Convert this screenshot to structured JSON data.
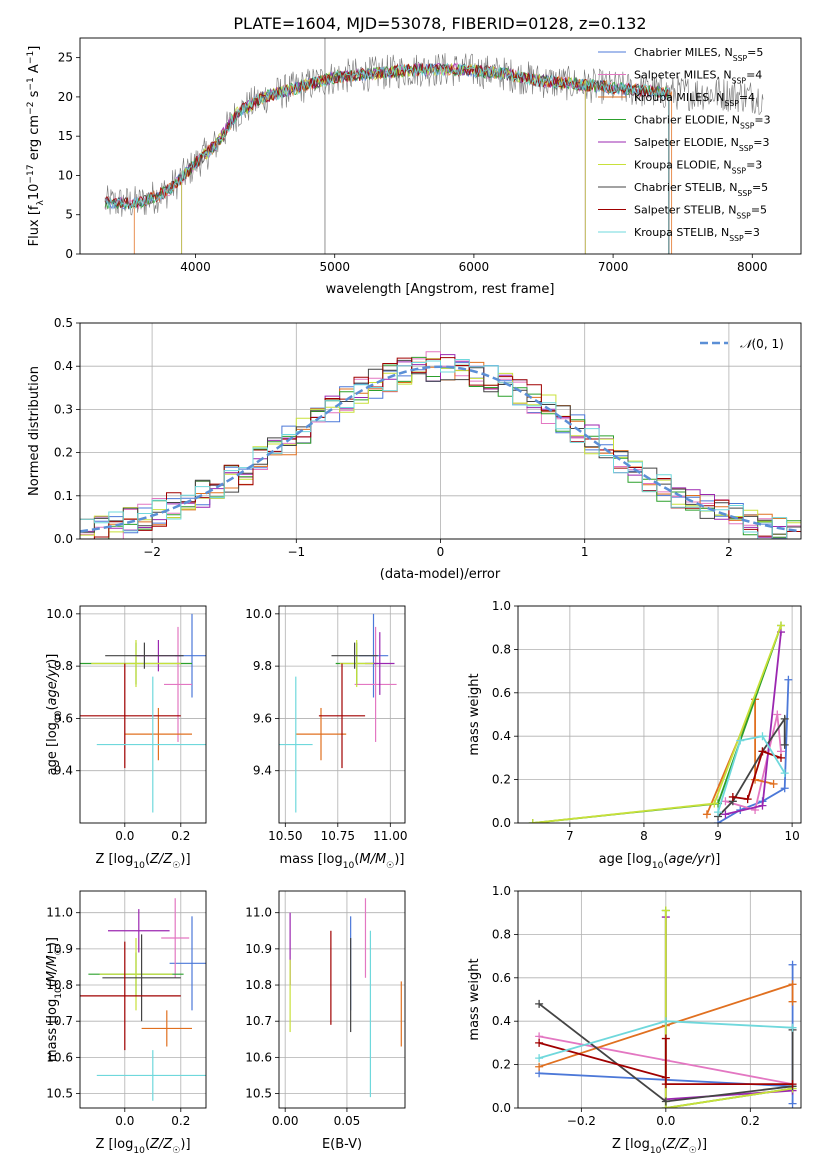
{
  "title": "PLATE=1604, MJD=53078, FIBERID=0128, z=0.132",
  "colors": {
    "chabrier_miles": "#4c78d8",
    "salpeter_miles": "#e377c2",
    "kroupa_miles": "#e07020",
    "chabrier_elodie": "#2ca02c",
    "salpeter_elodie": "#9b27b0",
    "kroupa_elodie": "#c8e03a",
    "chabrier_stelib": "#444444",
    "salpeter_stelib": "#a00000",
    "kroupa_stelib": "#6fd8dc",
    "gaussian": "#5b8fd6",
    "grid": "#b0b0b0"
  },
  "chart_data": [
    {
      "id": "spectrum",
      "type": "line",
      "xlabel": "wavelength [Angstrom, rest frame]",
      "ylabel": "Flux [f_λ10^-17 erg cm^-2 s^-1 A^-1]",
      "xlim": [
        3170,
        8350
      ],
      "ylim": [
        0,
        27.5
      ],
      "xticks": [
        4000,
        5000,
        6000,
        7000,
        8000
      ],
      "yticks": [
        0,
        5,
        10,
        15,
        20,
        25
      ],
      "grid": false,
      "legend_position": "right",
      "series": [
        {
          "name": "Chabrier MILES, N_SSP=5",
          "color_key": "chabrier_miles"
        },
        {
          "name": "Salpeter MILES, N_SSP=4",
          "color_key": "salpeter_miles"
        },
        {
          "name": "Kroupa MILES, N_SSP=4",
          "color_key": "kroupa_miles"
        },
        {
          "name": "Chabrier ELODIE, N_SSP=3",
          "color_key": "chabrier_elodie"
        },
        {
          "name": "Salpeter ELODIE, N_SSP=3",
          "color_key": "salpeter_elodie"
        },
        {
          "name": "Kroupa ELODIE, N_SSP=3",
          "color_key": "kroupa_elodie"
        },
        {
          "name": "Chabrier STELIB, N_SSP=5",
          "color_key": "chabrier_stelib"
        },
        {
          "name": "Salpeter STELIB, N_SSP=5",
          "color_key": "salpeter_stelib"
        },
        {
          "name": "Kroupa STELIB, N_SSP=3",
          "color_key": "kroupa_stelib"
        }
      ],
      "continuum": {
        "x": [
          3350,
          3600,
          3800,
          4000,
          4150,
          4300,
          4500,
          4700,
          5000,
          5300,
          5600,
          5900,
          6200,
          6500,
          6800,
          7100,
          7400,
          7700,
          8050
        ],
        "y": [
          6.5,
          6.5,
          8,
          11.5,
          14,
          18,
          20,
          21,
          22.5,
          23,
          23.5,
          23.5,
          23,
          22,
          21.5,
          21,
          20.5,
          20.5,
          20
        ]
      },
      "data": {
        "x": [
          3350,
          3600,
          3800,
          4000,
          4150,
          4300,
          4500,
          4700,
          5000,
          5300,
          5600,
          5900,
          6200,
          6500,
          6800,
          7100,
          7400,
          7700,
          8050
        ],
        "y": [
          7.0,
          5.5,
          9,
          13,
          13.5,
          19,
          21,
          22,
          24,
          21,
          24,
          25,
          23,
          22,
          22,
          24,
          21,
          22,
          20
        ]
      },
      "model_ranges": [
        {
          "series": 0,
          "x": [
            3350,
            7400
          ]
        },
        {
          "series": 1,
          "x": [
            3350,
            7400
          ]
        },
        {
          "series": 2,
          "x": [
            3560,
            7420
          ]
        },
        {
          "series": 3,
          "x": [
            3350,
            7400
          ]
        },
        {
          "series": 4,
          "x": [
            3900,
            6800
          ]
        },
        {
          "series": 5,
          "x": [
            3900,
            6800
          ]
        },
        {
          "series": 6,
          "x": [
            3350,
            7400
          ]
        },
        {
          "series": 7,
          "x": [
            3350,
            7400
          ]
        },
        {
          "series": 8,
          "x": [
            3350,
            7400
          ]
        }
      ]
    },
    {
      "id": "residuals",
      "type": "line",
      "xlabel": "(data-model)/error",
      "ylabel": "Normed distribution",
      "xlim": [
        -2.5,
        2.5
      ],
      "ylim": [
        0,
        0.5
      ],
      "xticks": [
        -2,
        -1,
        0,
        1,
        2
      ],
      "yticks": [
        0.0,
        0.1,
        0.2,
        0.3,
        0.4,
        0.5
      ],
      "grid": true,
      "legend_position": "top-right",
      "gaussian_label": "N(0,1)"
    },
    {
      "id": "age_vs_Z",
      "type": "scatter",
      "xlabel": "Z [log10(Z/Z☉)]",
      "ylabel": "age  [log10(age/yr)]",
      "xlim": [
        -0.16,
        0.29
      ],
      "ylim": [
        9.2,
        10.03
      ],
      "xticks": [
        0.0,
        0.2
      ],
      "yticks": [
        9.4,
        9.6,
        9.8,
        10.0
      ],
      "grid": true,
      "points": [
        {
          "s": 0,
          "x": 0.24,
          "y": 9.84,
          "xerr": 0.06,
          "yerr": 0.16
        },
        {
          "s": 1,
          "x": 0.19,
          "y": 9.73,
          "xerr": 0.05,
          "yerr": 0.22
        },
        {
          "s": 2,
          "x": 0.12,
          "y": 9.54,
          "xerr": 0.12,
          "yerr": 0.1
        },
        {
          "s": 3,
          "x": 0.04,
          "y": 9.81,
          "xerr": 0.2,
          "yerr": 0.08
        },
        {
          "s": 4,
          "x": 0.12,
          "y": 9.84,
          "xerr": 0.08,
          "yerr": 0.06
        },
        {
          "s": 5,
          "x": 0.04,
          "y": 9.81,
          "xerr": 0.16,
          "yerr": 0.09
        },
        {
          "s": 6,
          "x": 0.07,
          "y": 9.84,
          "xerr": 0.14,
          "yerr": 0.05
        },
        {
          "s": 7,
          "x": 0.0,
          "y": 9.61,
          "xerr": 0.2,
          "yerr": 0.2
        },
        {
          "s": 8,
          "x": 0.1,
          "y": 9.5,
          "xerr": 0.2,
          "yerr": 0.26
        }
      ]
    },
    {
      "id": "age_vs_mass",
      "type": "scatter",
      "xlabel": "mass [log10(M/M☉)]",
      "ylabel": "",
      "xlim": [
        10.47,
        11.07
      ],
      "ylim": [
        9.2,
        10.03
      ],
      "xticks": [
        10.5,
        10.75,
        11.0
      ],
      "yticks": [
        9.4,
        9.6,
        9.8,
        10.0
      ],
      "grid": true,
      "points": [
        {
          "s": 0,
          "x": 10.92,
          "y": 9.84,
          "xerr": 0.07,
          "yerr": 0.16
        },
        {
          "s": 1,
          "x": 10.93,
          "y": 9.73,
          "xerr": 0.1,
          "yerr": 0.22
        },
        {
          "s": 2,
          "x": 10.67,
          "y": 9.54,
          "xerr": 0.12,
          "yerr": 0.1
        },
        {
          "s": 3,
          "x": 10.84,
          "y": 9.81,
          "xerr": 0.1,
          "yerr": 0.08
        },
        {
          "s": 4,
          "x": 10.95,
          "y": 9.81,
          "xerr": 0.07,
          "yerr": 0.12
        },
        {
          "s": 5,
          "x": 10.84,
          "y": 9.81,
          "xerr": 0.08,
          "yerr": 0.09
        },
        {
          "s": 6,
          "x": 10.83,
          "y": 9.84,
          "xerr": 0.11,
          "yerr": 0.05
        },
        {
          "s": 7,
          "x": 10.77,
          "y": 9.61,
          "xerr": 0.11,
          "yerr": 0.2
        },
        {
          "s": 8,
          "x": 10.55,
          "y": 9.5,
          "xerr": 0.08,
          "yerr": 0.26
        }
      ]
    },
    {
      "id": "mass_weight_vs_age",
      "type": "line",
      "xlabel": "age  [log10(age/yr)]",
      "ylabel": "mass weight",
      "xlim": [
        6.3,
        10.12
      ],
      "ylim": [
        0,
        1.0
      ],
      "xticks": [
        7,
        8,
        9,
        10
      ],
      "yticks": [
        0.0,
        0.2,
        0.4,
        0.6,
        0.8,
        1.0
      ],
      "grid": true,
      "series": [
        {
          "s": 0,
          "x": [
            9.0,
            9.3,
            9.6,
            9.9,
            9.95
          ],
          "y": [
            0.0,
            0.06,
            0.1,
            0.16,
            0.66
          ]
        },
        {
          "s": 1,
          "x": [
            9.1,
            9.5,
            9.8,
            9.85
          ],
          "y": [
            0.1,
            0.06,
            0.5,
            0.33
          ]
        },
        {
          "s": 2,
          "x": [
            8.85,
            9.5,
            9.5,
            9.75
          ],
          "y": [
            0.04,
            0.57,
            0.2,
            0.18
          ]
        },
        {
          "s": 3,
          "x": [
            6.5,
            9.0,
            9.85
          ],
          "y": [
            0.0,
            0.09,
            0.91
          ]
        },
        {
          "s": 4,
          "x": [
            9.1,
            9.6,
            9.85
          ],
          "y": [
            0.04,
            0.08,
            0.88
          ]
        },
        {
          "s": 5,
          "x": [
            6.5,
            8.95,
            9.85
          ],
          "y": [
            0.0,
            0.09,
            0.91
          ]
        },
        {
          "s": 6,
          "x": [
            9.0,
            9.2,
            9.6,
            9.9,
            9.9
          ],
          "y": [
            0.03,
            0.1,
            0.33,
            0.48,
            0.36
          ]
        },
        {
          "s": 7,
          "x": [
            9.2,
            9.4,
            9.6,
            9.85
          ],
          "y": [
            0.12,
            0.11,
            0.33,
            0.3
          ]
        },
        {
          "s": 8,
          "x": [
            9.0,
            9.3,
            9.6,
            9.9
          ],
          "y": [
            0.05,
            0.38,
            0.4,
            0.23
          ]
        }
      ]
    },
    {
      "id": "mass_vs_Z",
      "type": "scatter",
      "xlabel": "Z [log10(Z/Z☉)]",
      "ylabel": "mass [log10(M/M☉)]",
      "xlim": [
        -0.16,
        0.29
      ],
      "ylim": [
        10.46,
        11.06
      ],
      "xticks": [
        0.0,
        0.2
      ],
      "yticks": [
        10.5,
        10.6,
        10.7,
        10.8,
        10.9,
        11.0
      ],
      "grid": true,
      "points": [
        {
          "s": 0,
          "x": 0.24,
          "y": 10.86,
          "xerr": 0.08,
          "yerr": 0.13
        },
        {
          "s": 1,
          "x": 0.18,
          "y": 10.93,
          "xerr": 0.05,
          "yerr": 0.11
        },
        {
          "s": 2,
          "x": 0.15,
          "y": 10.68,
          "xerr": 0.09,
          "yerr": 0.05
        },
        {
          "s": 3,
          "x": 0.04,
          "y": 10.83,
          "xerr": 0.17,
          "yerr": 0.06
        },
        {
          "s": 4,
          "x": 0.05,
          "y": 10.95,
          "xerr": 0.11,
          "yerr": 0.06
        },
        {
          "s": 5,
          "x": 0.04,
          "y": 10.83,
          "xerr": 0.13,
          "yerr": 0.1
        },
        {
          "s": 6,
          "x": 0.06,
          "y": 10.82,
          "xerr": 0.14,
          "yerr": 0.12
        },
        {
          "s": 7,
          "x": 0.0,
          "y": 10.77,
          "xerr": 0.2,
          "yerr": 0.15
        },
        {
          "s": 8,
          "x": 0.1,
          "y": 10.55,
          "xerr": 0.2,
          "yerr": 0.07
        }
      ]
    },
    {
      "id": "mass_vs_ebv",
      "type": "scatter",
      "xlabel": "E(B-V)",
      "ylabel": "",
      "xlim": [
        -0.005,
        0.097
      ],
      "ylim": [
        10.46,
        11.06
      ],
      "xticks": [
        0.0,
        0.05
      ],
      "yticks": [
        10.5,
        10.6,
        10.7,
        10.8,
        10.9,
        11.0
      ],
      "grid": true,
      "points": [
        {
          "s": 0,
          "x": 0.053,
          "y": 10.86,
          "yerr": 0.13
        },
        {
          "s": 1,
          "x": 0.065,
          "y": 10.93,
          "yerr": 0.11
        },
        {
          "s": 2,
          "x": 0.094,
          "y": 10.72,
          "yerr": 0.09
        },
        {
          "s": 4,
          "x": 0.004,
          "y": 10.9,
          "yerr": 0.1
        },
        {
          "s": 5,
          "x": 0.004,
          "y": 10.77,
          "yerr": 0.1
        },
        {
          "s": 6,
          "x": 0.053,
          "y": 10.8,
          "yerr": 0.13
        },
        {
          "s": 7,
          "x": 0.037,
          "y": 10.82,
          "yerr": 0.13
        },
        {
          "s": 8,
          "x": 0.069,
          "y": 10.72,
          "yerr": 0.23
        }
      ]
    },
    {
      "id": "mass_weight_vs_Z",
      "type": "line",
      "xlabel": "Z [log10(Z/Z☉)]",
      "ylabel": "mass weight",
      "xlim": [
        -0.35,
        0.32
      ],
      "ylim": [
        0,
        1.0
      ],
      "xticks": [
        -0.2,
        0.0,
        0.2
      ],
      "yticks": [
        0.0,
        0.2,
        0.4,
        0.6,
        0.8,
        1.0
      ],
      "grid": true,
      "series": [
        {
          "s": 0,
          "x": [
            -0.3,
            0.0,
            0.3,
            0.3,
            0.3
          ],
          "y": [
            0.16,
            0.13,
            0.1,
            0.02,
            0.66
          ]
        },
        {
          "s": 1,
          "x": [
            -0.3,
            0.0,
            0.3
          ],
          "y": [
            0.33,
            0.22,
            0.11
          ]
        },
        {
          "s": 2,
          "x": [
            -0.3,
            0.0,
            0.3,
            0.3
          ],
          "y": [
            0.19,
            0.38,
            0.57,
            0.49
          ]
        },
        {
          "s": 3,
          "x": [
            0.0,
            0.0,
            0.3
          ],
          "y": [
            0.91,
            0.0,
            0.09
          ]
        },
        {
          "s": 4,
          "x": [
            0.0,
            0.0,
            0.3
          ],
          "y": [
            0.88,
            0.04,
            0.08
          ]
        },
        {
          "s": 5,
          "x": [
            0.0,
            0.0,
            0.3
          ],
          "y": [
            0.91,
            0.0,
            0.09
          ]
        },
        {
          "s": 6,
          "x": [
            -0.3,
            0.0,
            0.3,
            0.3
          ],
          "y": [
            0.48,
            0.03,
            0.1,
            0.36
          ]
        },
        {
          "s": 7,
          "x": [
            -0.3,
            0.0,
            0.0,
            0.0,
            0.3
          ],
          "y": [
            0.3,
            0.14,
            0.32,
            0.11,
            0.11
          ]
        },
        {
          "s": 8,
          "x": [
            -0.3,
            0.0,
            0.3
          ],
          "y": [
            0.23,
            0.4,
            0.37
          ]
        }
      ]
    }
  ]
}
